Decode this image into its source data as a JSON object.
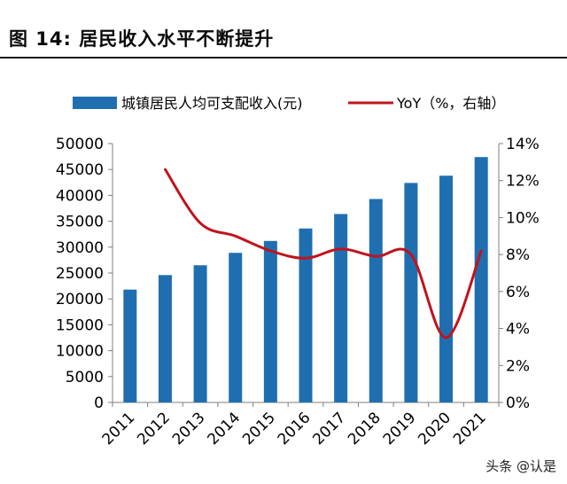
{
  "figure": {
    "title": "图 14: 居民收入水平不断提升",
    "watermark": "头条 @认是"
  },
  "chart_data": {
    "type": "bar",
    "categories": [
      "2011",
      "2012",
      "2013",
      "2014",
      "2015",
      "2016",
      "2017",
      "2018",
      "2019",
      "2020",
      "2021"
    ],
    "series": [
      {
        "name": "城镇居民人均可支配收入(元)",
        "type": "bar",
        "axis": "left",
        "color": "#1f6fb0",
        "values": [
          21800,
          24600,
          26500,
          28900,
          31200,
          33600,
          36400,
          39300,
          42400,
          43800,
          47400
        ]
      },
      {
        "name": "YoY（%，右轴）",
        "type": "line",
        "axis": "right",
        "color": "#c0141c",
        "values": [
          null,
          12.6,
          9.7,
          9.0,
          8.2,
          7.8,
          8.3,
          7.9,
          8.0,
          3.5,
          8.2
        ]
      }
    ],
    "y_left": {
      "min": 0,
      "max": 50000,
      "ticks": [
        "0",
        "5000",
        "10000",
        "15000",
        "20000",
        "25000",
        "30000",
        "35000",
        "40000",
        "45000",
        "50000"
      ]
    },
    "y_right": {
      "min": 0,
      "max": 14,
      "ticks": [
        "0%",
        "2%",
        "4%",
        "6%",
        "8%",
        "10%",
        "12%",
        "14%"
      ]
    },
    "grid": false,
    "legend_position": "top"
  }
}
